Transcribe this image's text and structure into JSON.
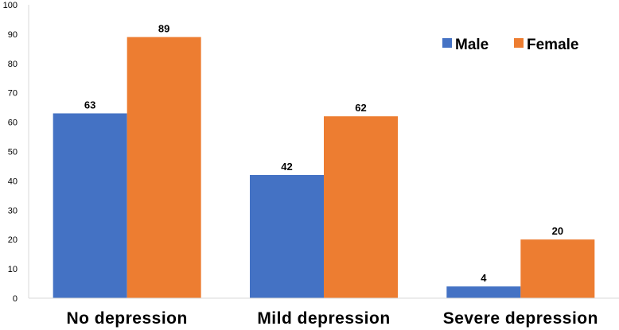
{
  "chart_data": {
    "type": "bar",
    "categories": [
      "No depression",
      "Mild depression",
      "Severe depression"
    ],
    "series": [
      {
        "name": "Male",
        "values": [
          63,
          42,
          4
        ],
        "color": "#4472C4"
      },
      {
        "name": "Female",
        "values": [
          89,
          62,
          20
        ],
        "color": "#ED7D31"
      }
    ],
    "ylim": [
      0,
      100
    ],
    "yticks": [
      0,
      10,
      20,
      30,
      40,
      50,
      60,
      70,
      80,
      90,
      100
    ],
    "grid": false,
    "legend_position": "top-right",
    "data_labels": true
  }
}
